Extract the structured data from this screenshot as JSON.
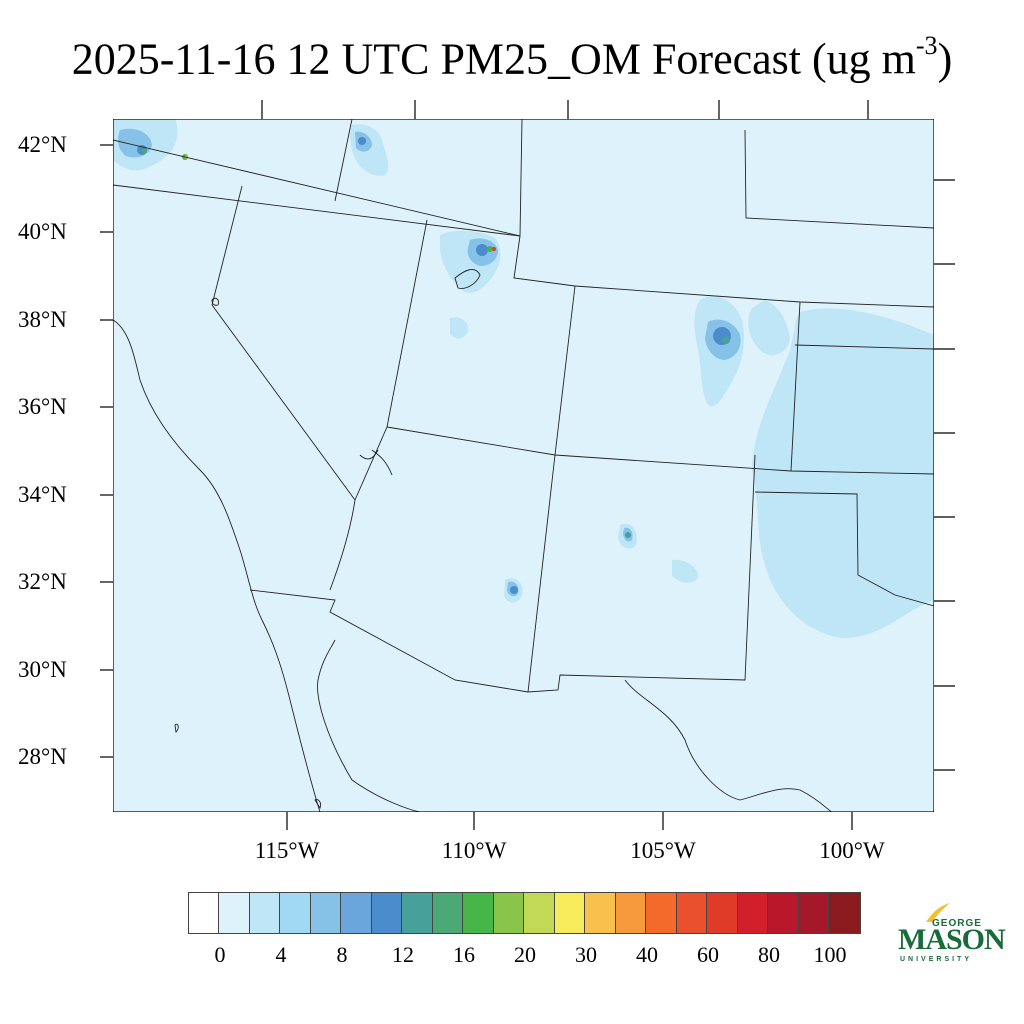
{
  "title": {
    "text": "2025-11-16 12 UTC PM25_OM Forecast (ug m",
    "superscript": "-3",
    "close": ")"
  },
  "map": {
    "background_color": "#def2fb",
    "lat_labels": [
      "42°N",
      "40°N",
      "38°N",
      "36°N",
      "34°N",
      "32°N",
      "30°N",
      "28°N"
    ],
    "lon_labels": [
      "115°W",
      "110°W",
      "105°W",
      "100°W"
    ]
  },
  "colorbar": {
    "colors": [
      "#ffffff",
      "#def2fb",
      "#bfe6f7",
      "#a1d9f4",
      "#86c1e8",
      "#6aa5db",
      "#4a8ccc",
      "#47a09a",
      "#4aa975",
      "#47b648",
      "#88c54a",
      "#c2d957",
      "#f7eb5b",
      "#f8c04c",
      "#f79a3e",
      "#f46a2b",
      "#e9512e",
      "#e03a29",
      "#d21f2b",
      "#b8182a",
      "#a5182a",
      "#8b1a1f"
    ],
    "labels": [
      "0",
      "4",
      "8",
      "12",
      "16",
      "20",
      "30",
      "40",
      "60",
      "80",
      "100"
    ]
  },
  "logo": {
    "line1": "GEORGE",
    "line2": "MASON",
    "line3": "UNIVERSITY",
    "color": "#1a6b3a"
  }
}
